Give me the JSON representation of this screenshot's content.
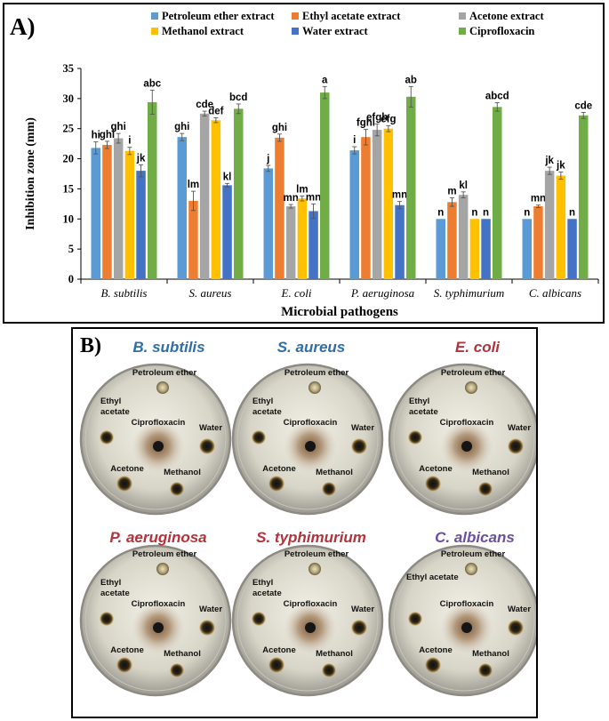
{
  "panel_a": {
    "letter": "A)",
    "chart_data": {
      "type": "bar",
      "title": "",
      "xlabel": "Microbial pathogens",
      "ylabel": "Inhibition zone (mm)",
      "ylim": [
        0,
        35
      ],
      "yticks": [
        "0",
        "5",
        "10",
        "15",
        "20",
        "25",
        "30",
        "35"
      ],
      "grid": false,
      "legend_position": "top",
      "categories": [
        "B. subtilis",
        "S. aureus",
        "E. coli",
        "P. aeruginosa",
        "S. typhimurium",
        "C. albicans"
      ],
      "series": [
        {
          "name": "Petroleum ether extract",
          "color": "#5b9bd5",
          "values": [
            21.8,
            23.6,
            18.4,
            21.4,
            10,
            10
          ],
          "errors": [
            1.0,
            0.6,
            0.5,
            0.6,
            0,
            0
          ],
          "letters": [
            "hi",
            "ghi",
            "j",
            "i",
            "n",
            "n"
          ]
        },
        {
          "name": "Ethyl acetate extract",
          "color": "#ed7d31",
          "values": [
            22.3,
            13,
            23.5,
            23.6,
            12.8,
            12.1
          ],
          "errors": [
            0.6,
            1.6,
            0.6,
            1.3,
            0.7,
            0.2
          ],
          "letters": [
            "ghi",
            "lm",
            "ghi",
            "fghi",
            "m",
            "mn"
          ]
        },
        {
          "name": "Acetone extract",
          "color": "#a5a5a5",
          "values": [
            23.4,
            27.5,
            12.1,
            24.8,
            14,
            18
          ],
          "errors": [
            0.8,
            0.4,
            0.3,
            1.0,
            0.5,
            0.6
          ],
          "letters": [
            "ghi",
            "cde",
            "mn",
            "efgh",
            "kl",
            "jk"
          ]
        },
        {
          "name": "Methanol extract",
          "color": "#ffc000",
          "values": [
            21.3,
            26.4,
            13.4,
            25,
            10,
            17.2
          ],
          "errors": [
            0.6,
            0.4,
            0.4,
            0.5,
            0,
            0.6
          ],
          "letters": [
            "i",
            "def",
            "lm",
            "efg",
            "n",
            "jk"
          ]
        },
        {
          "name": "Water extract",
          "color": "#4472c4",
          "values": [
            18,
            15.6,
            11.3,
            12.3,
            10,
            10
          ],
          "errors": [
            1.0,
            0.3,
            1.2,
            0.6,
            0,
            0
          ],
          "letters": [
            "jk",
            "kl",
            "mn",
            "mn",
            "n",
            "n"
          ]
        },
        {
          "name": "Ciprofloxacin",
          "color": "#70ad47",
          "values": [
            29.4,
            28.3,
            31,
            30.3,
            28.6,
            27.2
          ],
          "errors": [
            2.0,
            0.8,
            1.0,
            1.7,
            0.7,
            0.5
          ],
          "letters": [
            "abc",
            "bcd",
            "a",
            "ab",
            "abcd",
            "cde"
          ]
        }
      ]
    }
  },
  "panel_b": {
    "letter": "B)",
    "plates": [
      {
        "title": "B. subtilis",
        "title_color": "#2f6ea8",
        "labels": {
          "petroleum": "Petroleum ether",
          "ethyl": "Ethyl acetate",
          "cipro": "Ciprofloxacin",
          "water": "Water",
          "acetone": "Acetone",
          "methanol": "Methanol"
        }
      },
      {
        "title": "S. aureus",
        "title_color": "#2f6ea8",
        "labels": {
          "petroleum": "Petroleum ether",
          "ethyl": "Ethyl acetate",
          "cipro": "Ciprofloxacin",
          "water": "Water",
          "acetone": "Acetone",
          "methanol": "Methanol"
        }
      },
      {
        "title": "E. coli",
        "title_color": "#b5323a",
        "labels": {
          "petroleum": "Petroleum ether",
          "ethyl": "Ethyl acetate",
          "cipro": "Ciprofloxacin",
          "water": "Water",
          "acetone": "Acetone",
          "methanol": "Methanol"
        }
      },
      {
        "title": "P. aeruginosa",
        "title_color": "#b5323a",
        "labels": {
          "petroleum": "Petroleum ether",
          "ethyl": "Ethyl acetate",
          "cipro": "Ciprofloxacin",
          "water": "Water",
          "acetone": "Acetone",
          "methanol": "Methanol"
        }
      },
      {
        "title": "S. typhimurium",
        "title_color": "#b5323a",
        "labels": {
          "petroleum": "Petroleum ether",
          "ethyl": "Ethyl acetate",
          "cipro": "Ciprofloxacin",
          "water": "Water",
          "acetone": "Acetone",
          "methanol": "Methanol"
        }
      },
      {
        "title": "C. albicans",
        "title_color": "#6a4fa0",
        "labels": {
          "petroleum": "Petroleum ether",
          "ethyl": "Ethyl acetate",
          "cipro": "Ciprofloxacin",
          "water": "Water",
          "acetone": "Acetone",
          "methanol": "Methanol"
        }
      }
    ]
  }
}
